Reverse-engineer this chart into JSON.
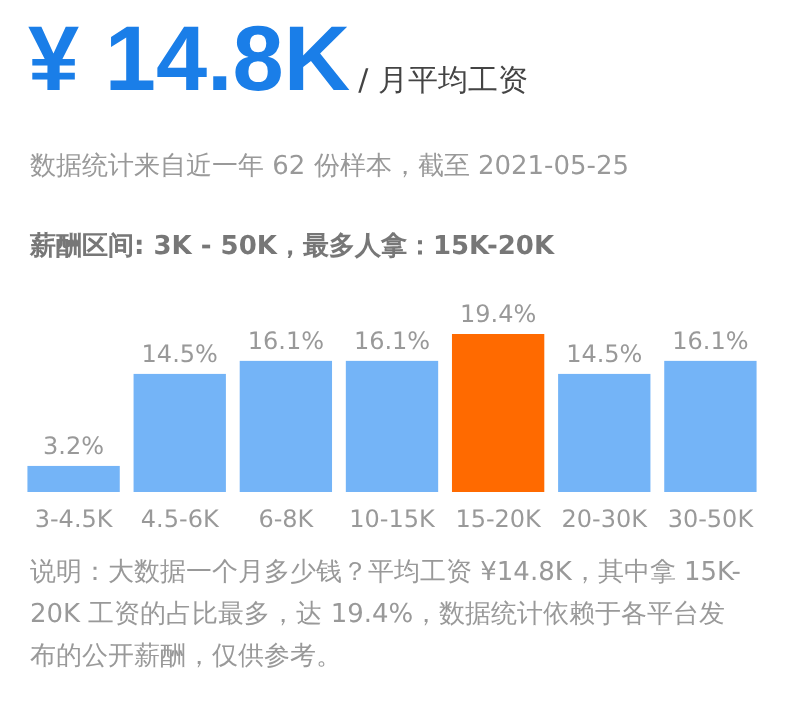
{
  "chart_data": {
    "type": "bar",
    "title": "¥ 14.8K",
    "subtitle": "/ 月平均工资",
    "annotations": [
      "数据统计来自近一年 62 份样本，截至 2021-05-25",
      "薪酬区间: 3K - 50K，最多人拿：15K-20K",
      "说明：大数据一个月多少钱？平均工资 ¥14.8K，其中拿 15K-20K 工资的占比最多，达 19.4%，数据统计依赖于各平台发布的公开薪酬，仅供参考。"
    ],
    "categories": [
      "3-4.5K",
      "4.5-6K",
      "6-8K",
      "10-15K",
      "15-20K",
      "20-30K",
      "30-50K"
    ],
    "values": [
      3.2,
      14.5,
      16.1,
      16.1,
      19.4,
      14.5,
      16.1
    ],
    "value_labels": [
      "3.2%",
      "14.5%",
      "16.1%",
      "16.1%",
      "19.4%",
      "14.5%",
      "16.1%"
    ],
    "colors": [
      "#74b4f7",
      "#74b4f7",
      "#74b4f7",
      "#74b4f7",
      "#ff6a00",
      "#74b4f7",
      "#74b4f7"
    ]
  }
}
